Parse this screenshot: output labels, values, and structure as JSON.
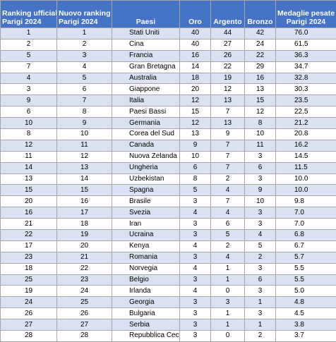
{
  "table": {
    "headers": [
      [
        "Ranking ufficiale",
        "Parigi 2024"
      ],
      [
        "Nuovo ranking",
        "Parigi 2024"
      ],
      [
        "",
        "Paesi"
      ],
      [
        "",
        "Oro"
      ],
      [
        "",
        "Argento"
      ],
      [
        "",
        "Bronzo"
      ],
      [
        "Medaglie pesate",
        "Parigi 2024"
      ]
    ],
    "rows": [
      [
        "1",
        "1",
        "Stati Uniti",
        "40",
        "44",
        "42",
        "76.0"
      ],
      [
        "2",
        "2",
        "Cina",
        "40",
        "27",
        "24",
        "61.5"
      ],
      [
        "5",
        "3",
        "Francia",
        "16",
        "26",
        "22",
        "36.3"
      ],
      [
        "7",
        "4",
        "Gran Bretagna",
        "14",
        "22",
        "29",
        "34.7"
      ],
      [
        "4",
        "5",
        "Australia",
        "18",
        "19",
        "16",
        "32.8"
      ],
      [
        "3",
        "6",
        "Giappone",
        "20",
        "12",
        "13",
        "30.3"
      ],
      [
        "9",
        "7",
        "Italia",
        "12",
        "13",
        "15",
        "23.5"
      ],
      [
        "6",
        "8",
        "Paesi Bassi",
        "15",
        "7",
        "12",
        "22.5"
      ],
      [
        "10",
        "9",
        "Germania",
        "12",
        "13",
        "8",
        "21.2"
      ],
      [
        "8",
        "10",
        "Corea del Sud",
        "13",
        "9",
        "10",
        "20.8"
      ],
      [
        "12",
        "11",
        "Canada",
        "9",
        "7",
        "11",
        "16.2"
      ],
      [
        "11",
        "12",
        "Nuova Zelanda",
        "10",
        "7",
        "3",
        "14.5"
      ],
      [
        "14",
        "13",
        "Ungheria",
        "6",
        "7",
        "6",
        "11.5"
      ],
      [
        "13",
        "14",
        "Uzbekistan",
        "8",
        "2",
        "3",
        "10.0"
      ],
      [
        "15",
        "15",
        "Spagna",
        "5",
        "4",
        "9",
        "10.0"
      ],
      [
        "20",
        "16",
        "Brasile",
        "3",
        "7",
        "10",
        "9.8"
      ],
      [
        "16",
        "17",
        "Svezia",
        "4",
        "4",
        "3",
        "7.0"
      ],
      [
        "21",
        "18",
        "Iran",
        "3",
        "6",
        "3",
        "7.0"
      ],
      [
        "22",
        "19",
        "Ucraina",
        "3",
        "5",
        "4",
        "6.8"
      ],
      [
        "17",
        "20",
        "Kenya",
        "4",
        "2",
        "5",
        "6.7"
      ],
      [
        "23",
        "21",
        "Romania",
        "3",
        "4",
        "2",
        "5.7"
      ],
      [
        "18",
        "22",
        "Norvegia",
        "4",
        "1",
        "3",
        "5.5"
      ],
      [
        "25",
        "23",
        "Belgio",
        "3",
        "1",
        "6",
        "5.5"
      ],
      [
        "19",
        "24",
        "Irlanda",
        "4",
        "0",
        "3",
        "5.0"
      ],
      [
        "24",
        "25",
        "Georgia",
        "3",
        "3",
        "1",
        "4.8"
      ],
      [
        "26",
        "26",
        "Bulgaria",
        "3",
        "1",
        "3",
        "4.5"
      ],
      [
        "27",
        "27",
        "Serbia",
        "3",
        "1",
        "1",
        "3.8"
      ],
      [
        "28",
        "28",
        "Repubblica Ceca",
        "3",
        "0",
        "2",
        "3.7"
      ]
    ]
  }
}
